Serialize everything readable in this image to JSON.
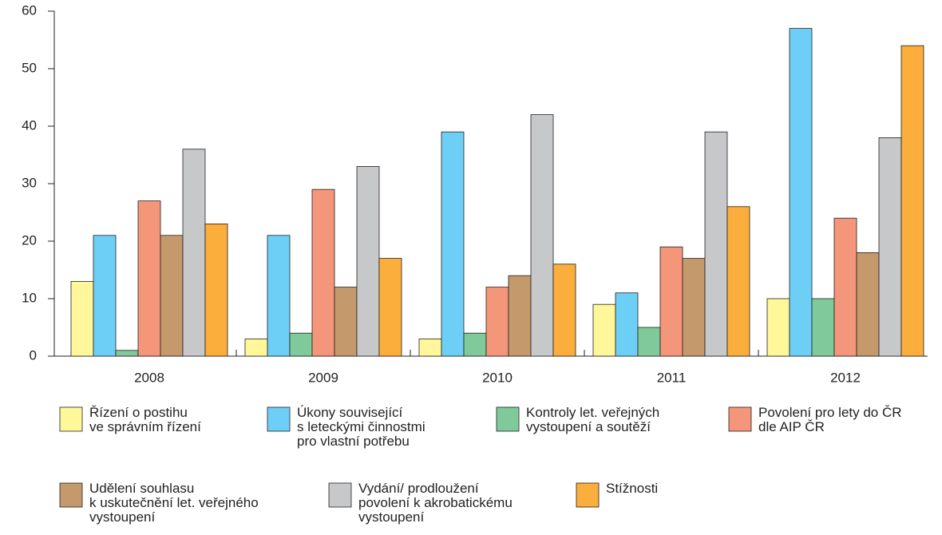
{
  "chart_data": {
    "type": "bar",
    "categories": [
      "2008",
      "2009",
      "2010",
      "2011",
      "2012"
    ],
    "series": [
      {
        "name": "Řízení o postihu\nve správním řízení",
        "color": "#fff799",
        "values": [
          13,
          3,
          3,
          9,
          10
        ]
      },
      {
        "name": "Úkony související\ns leteckými činnostmi\npro vlastní potřebu",
        "color": "#6dcff6",
        "values": [
          21,
          21,
          39,
          11,
          57
        ]
      },
      {
        "name": "Kontroly let. veřejných\nvystoupení a soutěží",
        "color": "#7fc99a",
        "values": [
          1,
          4,
          4,
          5,
          10
        ]
      },
      {
        "name": "Povolení pro lety do ČR\ndle AIP ČR",
        "color": "#f4967a",
        "values": [
          27,
          29,
          12,
          19,
          24
        ]
      },
      {
        "name": "Udělení souhlasu\nk uskutečnění let. veřejného\nvystoupení",
        "color": "#c4996c",
        "values": [
          21,
          12,
          14,
          17,
          18
        ]
      },
      {
        "name": "Vydání/ prodloužení\npovolení k akrobatickému\nvystoupení",
        "color": "#c7c8ca",
        "values": [
          36,
          33,
          42,
          39,
          38
        ]
      },
      {
        "name": "Stížnosti",
        "color": "#fbae3c",
        "values": [
          23,
          17,
          16,
          26,
          54
        ]
      }
    ],
    "ylim": [
      0,
      60
    ],
    "yticks": [
      0,
      10,
      20,
      30,
      40,
      50,
      60
    ],
    "grid": false
  }
}
